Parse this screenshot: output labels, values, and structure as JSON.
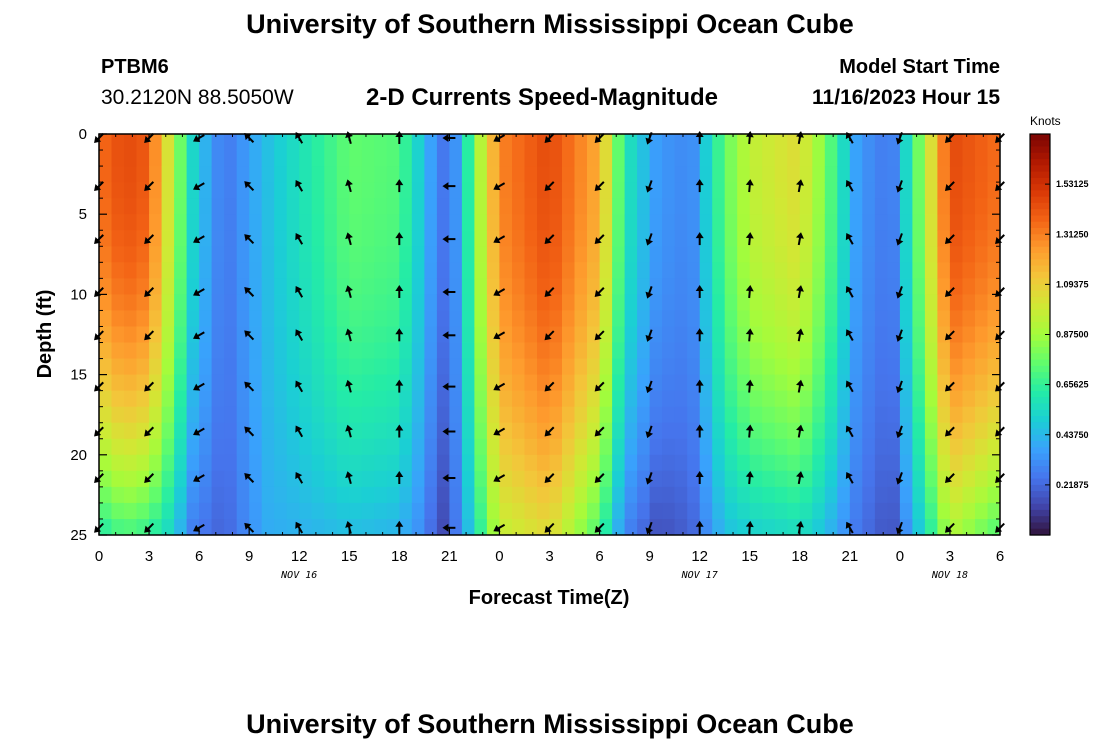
{
  "header": {
    "title": "University of Southern Mississippi Ocean Cube",
    "station_id": "PTBM6",
    "coordinates": "30.2120N  88.5050W",
    "subtitle": "2-D Currents Speed-Magnitude",
    "model_start_label": "Model Start Time",
    "model_start_value": "11/16/2023 Hour 15"
  },
  "footer": {
    "title": "University of Southern Mississippi Ocean Cube"
  },
  "chart_data": {
    "type": "heatmap",
    "title": "2-D Currents Speed-Magnitude",
    "xlabel": "Forecast Time(Z)",
    "ylabel": "Depth (ft)",
    "x_ticks": [
      "0",
      "3",
      "6",
      "9",
      "12",
      "15",
      "18",
      "21",
      "0",
      "3",
      "6",
      "9",
      "12",
      "15",
      "18",
      "21",
      "0",
      "3",
      "6"
    ],
    "x_hours_range": [
      0,
      54
    ],
    "date_labels": [
      {
        "text": "NOV 16",
        "hour": 12
      },
      {
        "text": "NOV 17",
        "hour": 36
      },
      {
        "text": "NOV 18",
        "hour": 51
      }
    ],
    "y_ticks": [
      0,
      5,
      10,
      15,
      20,
      25
    ],
    "ylim": [
      0,
      25
    ],
    "y_inverted": true,
    "colorbar": {
      "label": "Knots",
      "min": 0,
      "max": 1.75,
      "ticks": [
        "1.53125",
        "1.31250",
        "1.09375",
        "0.87500",
        "0.65625",
        "0.43750",
        "0.21875"
      ],
      "colors": [
        "#30123b",
        "#4145ab",
        "#4675ed",
        "#39a2fc",
        "#1bcfd4",
        "#24eca6",
        "#61fc6c",
        "#a4fc3b",
        "#d1e834",
        "#f3c63a",
        "#fe9b2d",
        "#f36315",
        "#d93806",
        "#b11901",
        "#7a0403"
      ]
    },
    "speed_profile": {
      "hours": [
        0,
        1.5,
        3,
        4.5,
        5.5,
        7.5,
        10,
        12.5,
        15,
        18,
        19.5,
        20.5,
        21.5,
        22.5,
        24,
        27,
        30,
        31.5,
        33.5,
        35.5,
        37.5,
        39,
        42,
        43.5,
        45.5,
        47.5,
        49.5,
        51,
        54
      ],
      "surface_knots": [
        1.35,
        1.45,
        1.4,
        0.9,
        0.55,
        0.25,
        0.45,
        0.6,
        0.75,
        0.72,
        0.45,
        0.25,
        0.35,
        0.8,
        1.3,
        1.45,
        1.2,
        0.6,
        0.35,
        0.3,
        0.75,
        0.95,
        1.05,
        0.8,
        0.35,
        0.25,
        0.9,
        1.45,
        1.35
      ],
      "bottom_knots": [
        0.6,
        0.7,
        0.65,
        0.5,
        0.28,
        0.2,
        0.4,
        0.42,
        0.45,
        0.42,
        0.3,
        0.12,
        0.28,
        0.55,
        0.95,
        1.05,
        0.7,
        0.3,
        0.15,
        0.2,
        0.45,
        0.5,
        0.55,
        0.45,
        0.25,
        0.15,
        0.55,
        0.9,
        0.7
      ]
    },
    "vector_hours": [
      0,
      3,
      6,
      9,
      12,
      15,
      18,
      21,
      24,
      27,
      30,
      33,
      36,
      39,
      42,
      45,
      48,
      51,
      54
    ],
    "vector_depths_ft": [
      0,
      3,
      6.3,
      9.6,
      12.3,
      15.5,
      18.3,
      21.2,
      24.3
    ],
    "vector_direction_deg": [
      225,
      225,
      240,
      315,
      330,
      345,
      0,
      270,
      240,
      225,
      225,
      200,
      0,
      5,
      10,
      330,
      200,
      225,
      225
    ]
  }
}
